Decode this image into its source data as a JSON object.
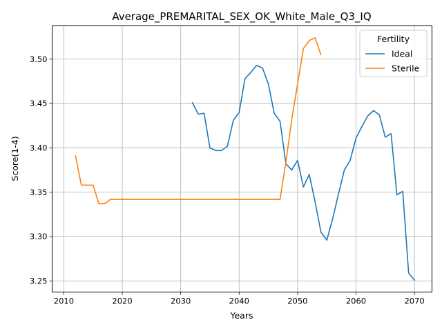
{
  "chart_data": {
    "type": "line",
    "title": "Average_PREMARITAL_SEX_OK_White_Male_Q3_IQ",
    "xlabel": "Years",
    "ylabel": "Score(1-4)",
    "xlim": [
      2008,
      2073
    ],
    "ylim": [
      3.2375,
      3.5375
    ],
    "xticks": [
      2010,
      2020,
      2030,
      2040,
      2050,
      2060,
      2070
    ],
    "yticks": [
      3.25,
      3.3,
      3.35,
      3.4,
      3.45,
      3.5
    ],
    "xtick_labels": [
      "2010",
      "2020",
      "2030",
      "2040",
      "2050",
      "2060",
      "2070"
    ],
    "ytick_labels": [
      "3.25",
      "3.30",
      "3.35",
      "3.40",
      "3.45",
      "3.50"
    ],
    "grid": true,
    "legend": {
      "title": "Fertility",
      "position": "top-right"
    },
    "series": [
      {
        "name": "Ideal",
        "color": "#1f77b4",
        "x": [
          2032,
          2033,
          2034,
          2035,
          2036,
          2037,
          2038,
          2039,
          2040,
          2041,
          2042,
          2043,
          2044,
          2045,
          2046,
          2047,
          2048,
          2049,
          2050,
          2051,
          2052,
          2053,
          2054,
          2055,
          2056,
          2057,
          2058,
          2059,
          2060,
          2061,
          2062,
          2063,
          2064,
          2065,
          2066,
          2067,
          2068,
          2069,
          2070
        ],
        "values": [
          3.451,
          3.438,
          3.439,
          3.4,
          3.397,
          3.397,
          3.402,
          3.431,
          3.44,
          3.478,
          3.485,
          3.493,
          3.49,
          3.472,
          3.439,
          3.43,
          3.382,
          3.375,
          3.386,
          3.356,
          3.37,
          3.339,
          3.305,
          3.296,
          3.32,
          3.348,
          3.375,
          3.386,
          3.411,
          3.424,
          3.436,
          3.442,
          3.437,
          3.412,
          3.416,
          3.347,
          3.351,
          3.259,
          3.251
        ]
      },
      {
        "name": "Sterile",
        "color": "#ff7f0e",
        "x": [
          2012,
          2013,
          2014,
          2015,
          2016,
          2017,
          2018,
          2019,
          2020,
          2021,
          2022,
          2023,
          2024,
          2025,
          2026,
          2027,
          2028,
          2029,
          2030,
          2031,
          2032,
          2033,
          2034,
          2035,
          2036,
          2037,
          2038,
          2039,
          2040,
          2041,
          2042,
          2043,
          2044,
          2045,
          2046,
          2047,
          2048,
          2049,
          2050,
          2051,
          2052,
          2053,
          2054
        ],
        "values": [
          3.391,
          3.358,
          3.358,
          3.358,
          3.337,
          3.337,
          3.342,
          3.342,
          3.342,
          3.342,
          3.342,
          3.342,
          3.342,
          3.342,
          3.342,
          3.342,
          3.342,
          3.342,
          3.342,
          3.342,
          3.342,
          3.342,
          3.342,
          3.342,
          3.342,
          3.342,
          3.342,
          3.342,
          3.342,
          3.342,
          3.342,
          3.342,
          3.342,
          3.342,
          3.342,
          3.342,
          3.384,
          3.432,
          3.472,
          3.512,
          3.521,
          3.524,
          3.505
        ]
      }
    ]
  }
}
